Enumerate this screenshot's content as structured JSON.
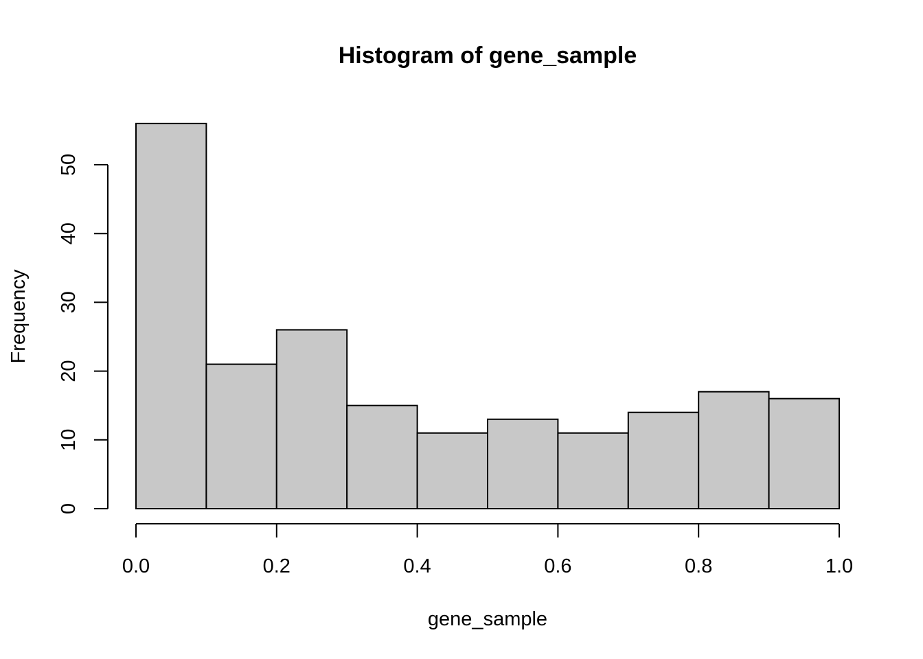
{
  "chart_data": {
    "type": "bar",
    "title": "Histogram of gene_sample",
    "xlabel": "gene_sample",
    "ylabel": "Frequency",
    "bin_edges": [
      0.0,
      0.1,
      0.2,
      0.3,
      0.4,
      0.5,
      0.6,
      0.7,
      0.8,
      0.9,
      1.0
    ],
    "values": [
      56,
      21,
      26,
      15,
      11,
      13,
      11,
      14,
      17,
      16
    ],
    "xlim": [
      0.0,
      1.0
    ],
    "ylim": [
      0,
      50
    ],
    "x_ticks": [
      0.0,
      0.2,
      0.4,
      0.6,
      0.8,
      1.0
    ],
    "x_tick_labels": [
      "0.0",
      "0.2",
      "0.4",
      "0.6",
      "0.8",
      "1.0"
    ],
    "y_ticks": [
      0,
      10,
      20,
      30,
      40,
      50
    ],
    "y_tick_labels": [
      "0",
      "10",
      "20",
      "30",
      "40",
      "50"
    ],
    "bar_color": "#c8c8c8",
    "grid": false,
    "legend": "none"
  }
}
